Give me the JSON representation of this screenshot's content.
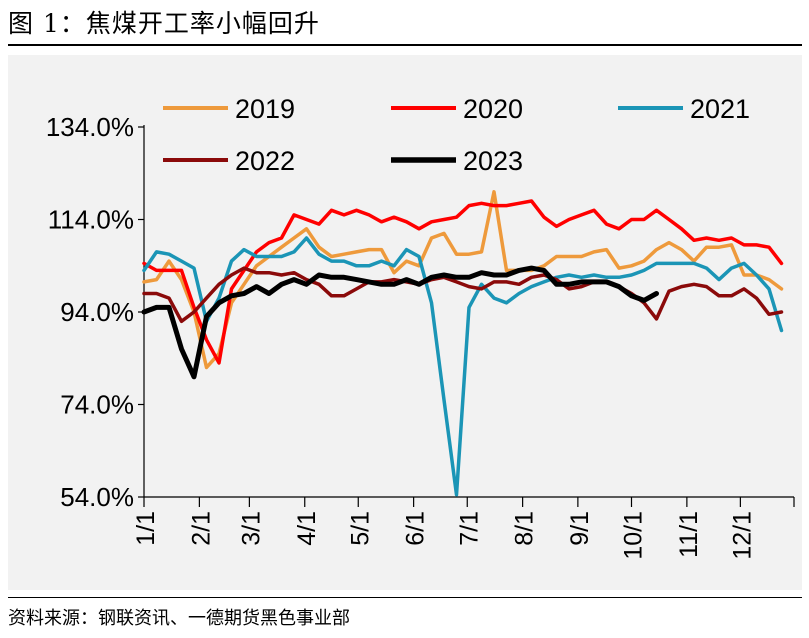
{
  "header": {
    "title": "图 1：焦煤开工率小幅回升"
  },
  "footer": {
    "source": "资料来源：钢联资讯、一德期货黑色事业部"
  },
  "chart_data": {
    "type": "line",
    "title": "",
    "xlabel": "",
    "ylabel": "",
    "ylim": [
      54,
      134
    ],
    "yticks": [
      "54.0%",
      "74.0%",
      "94.0%",
      "114.0%",
      "134.0%"
    ],
    "xticks": [
      "1/1",
      "2/1",
      "3/1",
      "4/1",
      "5/1",
      "6/1",
      "7/1",
      "8/1",
      "9/1",
      "10/1",
      "11/1",
      "12/1"
    ],
    "x_unit": "week of year",
    "legend_position": "top",
    "grid": false,
    "series": [
      {
        "name": "2019",
        "color": "#ee9a3c",
        "width": 3.5,
        "x": [
          1,
          2,
          3,
          4,
          5,
          6,
          7,
          8,
          9,
          10,
          11,
          12,
          13,
          14,
          15,
          16,
          17,
          18,
          19,
          20,
          21,
          22,
          23,
          24,
          25,
          26,
          27,
          28,
          29,
          30,
          31,
          32,
          33,
          34,
          35,
          36,
          37,
          38,
          39,
          40,
          41,
          42,
          43,
          44,
          45,
          46,
          47,
          48,
          49,
          50,
          51,
          52
        ],
        "values": [
          100.5,
          101,
          105,
          101,
          94,
          82,
          85,
          96,
          100,
          104,
          106,
          108,
          110,
          112,
          108,
          106,
          106.5,
          107,
          107.5,
          107.5,
          102.5,
          105,
          104,
          110,
          111,
          106.5,
          106.5,
          107,
          120,
          103,
          103,
          103,
          104,
          106,
          106,
          106,
          107,
          107.5,
          103.5,
          104,
          105,
          107.5,
          109,
          107.5,
          105,
          108,
          108,
          108.5,
          102,
          102,
          101,
          99
        ]
      },
      {
        "name": "2020",
        "color": "#ff0000",
        "width": 3.5,
        "x": [
          1,
          2,
          3,
          4,
          5,
          6,
          7,
          8,
          9,
          10,
          11,
          12,
          13,
          14,
          15,
          16,
          17,
          18,
          19,
          20,
          21,
          22,
          23,
          24,
          25,
          26,
          27,
          28,
          29,
          30,
          31,
          32,
          33,
          34,
          35,
          36,
          37,
          38,
          39,
          40,
          41,
          42,
          43,
          44,
          45,
          46,
          47,
          48,
          49,
          50,
          51,
          52
        ],
        "values": [
          104.5,
          103,
          103,
          103,
          95,
          88,
          83,
          99,
          103,
          107,
          109,
          110,
          115,
          114,
          113,
          116,
          115,
          116,
          115,
          113.5,
          114.5,
          113.5,
          112,
          113.5,
          114,
          114.5,
          117,
          117.5,
          117,
          117,
          117.5,
          118,
          114.5,
          112.5,
          114,
          115,
          116,
          113,
          112,
          114,
          114,
          116,
          114,
          112,
          109.5,
          110,
          109.5,
          110,
          108.5,
          108.5,
          108,
          104.5
        ]
      },
      {
        "name": "2021",
        "color": "#1b95b6",
        "width": 3.5,
        "x": [
          1,
          2,
          3,
          4,
          5,
          6,
          7,
          8,
          9,
          10,
          11,
          12,
          13,
          14,
          15,
          16,
          17,
          18,
          19,
          20,
          21,
          22,
          23,
          24,
          25,
          26,
          27,
          28,
          29,
          30,
          31,
          32,
          33,
          34,
          35,
          36,
          37,
          38,
          39,
          40,
          41,
          42,
          43,
          44,
          45,
          46,
          47,
          48,
          49,
          50,
          51,
          52
        ],
        "values": [
          103,
          107,
          106.5,
          105,
          103.5,
          92,
          97,
          105,
          107.5,
          106,
          106,
          106,
          107,
          110,
          106.5,
          105,
          105,
          104,
          104,
          105,
          104,
          107.5,
          106,
          96,
          75,
          54.5,
          95,
          100,
          97,
          96,
          98,
          99.5,
          100.5,
          101.5,
          102,
          101.5,
          102,
          101.5,
          101.5,
          102,
          103,
          104.5,
          104.5,
          104.5,
          104.5,
          103.5,
          101,
          103.5,
          104.5,
          102,
          99,
          90
        ]
      },
      {
        "name": "2022",
        "color": "#8b0a0a",
        "width": 3.5,
        "x": [
          1,
          2,
          3,
          4,
          5,
          6,
          7,
          8,
          9,
          10,
          11,
          12,
          13,
          14,
          15,
          16,
          17,
          18,
          19,
          20,
          21,
          22,
          23,
          24,
          25,
          26,
          27,
          28,
          29,
          30,
          31,
          32,
          33,
          34,
          35,
          36,
          37,
          38,
          39,
          40,
          41,
          42,
          43,
          44,
          45,
          46,
          47,
          48,
          49,
          50,
          51,
          52
        ],
        "values": [
          98,
          98,
          97,
          92,
          94,
          97,
          100,
          102,
          103.5,
          102.5,
          102.5,
          102,
          102.5,
          101,
          100,
          97.5,
          97.5,
          99,
          100.5,
          100.5,
          101,
          100.5,
          100,
          101,
          101.5,
          100.5,
          99.5,
          99,
          100.5,
          100.5,
          100,
          101.5,
          102,
          101,
          99,
          99.5,
          100.5,
          100.5,
          99.5,
          98,
          96,
          92.5,
          98.5,
          99.5,
          100,
          99.5,
          97.5,
          97.5,
          99,
          97,
          93.5,
          94
        ]
      },
      {
        "name": "2023",
        "color": "#000000",
        "width": 5,
        "x": [
          1,
          2,
          3,
          4,
          5,
          6,
          7,
          8,
          9,
          10,
          11,
          12,
          13,
          14,
          15,
          16,
          17,
          18,
          19,
          20,
          21,
          22,
          23,
          24,
          25,
          26,
          27,
          28,
          29,
          30,
          31,
          32,
          33,
          34,
          35,
          36,
          37,
          38,
          39,
          40,
          41,
          42
        ],
        "values": [
          94,
          95,
          95,
          86,
          80,
          93,
          96,
          97.5,
          98,
          99.5,
          98,
          100,
          101,
          100,
          102,
          101.5,
          101.5,
          101,
          100.5,
          100,
          100,
          101,
          100,
          101.5,
          102,
          101.5,
          101.5,
          102.5,
          102,
          102,
          103,
          103.5,
          103,
          100,
          100,
          100.5,
          100.5,
          100.5,
          99.5,
          97.5,
          96.5,
          98
        ]
      }
    ]
  }
}
